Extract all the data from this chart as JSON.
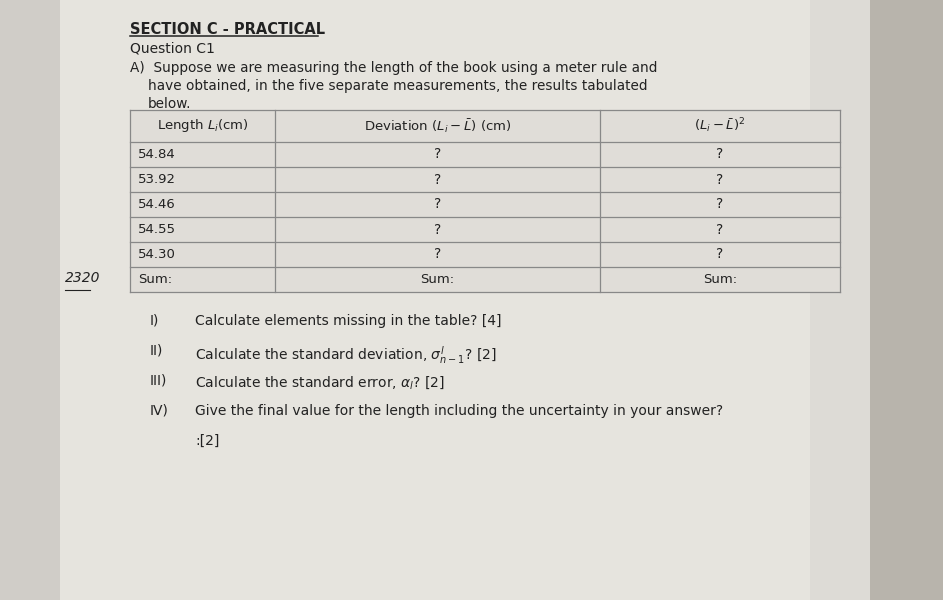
{
  "bg_color": "#c8c4bc",
  "page_color": "#e8e6e0",
  "section_title": "SECTION C - PRACTICAL",
  "question_label": "Question C1",
  "intro_line1": "A)  Suppose we are measuring the length of the book using a meter rule and",
  "intro_line2": "have obtained, in the five separate measurements, the results tabulated",
  "intro_line3": "below.",
  "col1_header": "Length $L_i$(cm)",
  "col2_header": "Deviation $(L_i - \\bar{L})$ (cm)",
  "col3_header": "$(L_i - \\bar{L})^2$",
  "lengths": [
    "54.84",
    "53.92",
    "54.46",
    "54.55",
    "54.30"
  ],
  "deviations": [
    "?",
    "?",
    "?",
    "?",
    "?"
  ],
  "deviations_sq": [
    "?",
    "?",
    "?",
    "?",
    "?"
  ],
  "sum_col1": "Sum:",
  "sum_col2": "Sum:",
  "sum_col3": "Sum:",
  "side_note": "2320",
  "questions": [
    [
      "I)",
      "Calculate elements missing in the table? [4]"
    ],
    [
      "II)",
      "Calculate the standard deviation, $\\sigma^l_{n-1}$? [2]"
    ],
    [
      "III)",
      "Calculate the standard error, $\\alpha_l$? [2]"
    ],
    [
      "IV)",
      "Give the final value for the length including the uncertainty in your answer?"
    ],
    [
      "",
      ":[2]"
    ]
  ],
  "font_color": "#222222",
  "table_line_color": "#888888",
  "table_bg": "#dedad4"
}
